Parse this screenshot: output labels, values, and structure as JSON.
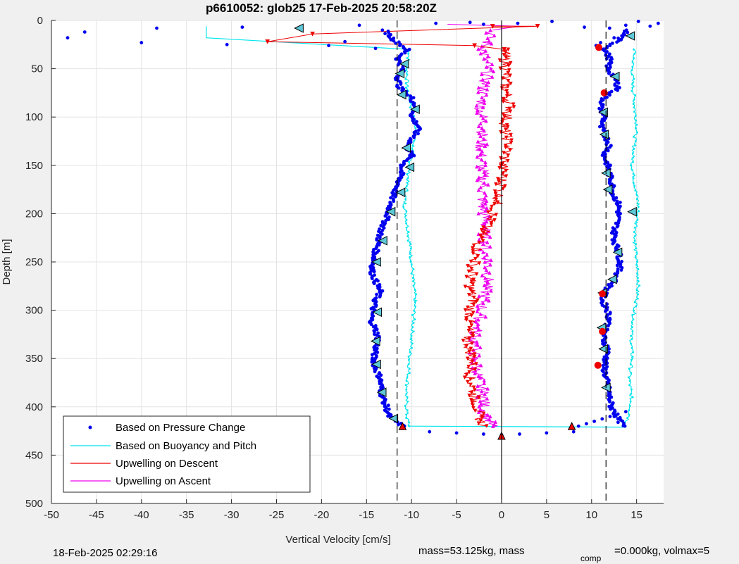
{
  "chart_data": {
    "type": "scatter",
    "title": "p6610052: glob25 17-Feb-2025 20:58:20Z",
    "xlabel": "Vertical Velocity [cm/s]",
    "ylabel": "Depth [m]",
    "xlim": [
      -50,
      18
    ],
    "ylim": [
      0,
      500
    ],
    "y_reversed": true,
    "grid": true,
    "legend_position": "bottom-left",
    "x_ticks": [
      -50,
      -45,
      -40,
      -35,
      -30,
      -25,
      -20,
      -15,
      -10,
      -5,
      0,
      5,
      10,
      15
    ],
    "y_ticks": [
      0,
      50,
      100,
      150,
      200,
      250,
      300,
      350,
      400,
      450,
      500
    ],
    "reference_lines": [
      {
        "x": -11.6,
        "style": "dashed"
      },
      {
        "x": 11.6,
        "style": "dashed"
      },
      {
        "x": 0,
        "style": "solid"
      }
    ],
    "series": [
      {
        "name": "Based on Pressure Change",
        "color": "#0000ee",
        "marker": "dot",
        "depth": [
          10,
          20,
          30,
          40,
          50,
          60,
          70,
          80,
          90,
          100,
          110,
          120,
          130,
          140,
          150,
          160,
          170,
          180,
          190,
          200,
          210,
          220,
          230,
          240,
          250,
          260,
          270,
          280,
          290,
          300,
          310,
          320,
          330,
          340,
          350,
          360,
          370,
          380,
          390,
          400,
          410,
          420
        ],
        "down": [
          -13,
          -12,
          -10.5,
          -11.5,
          -11,
          -11.5,
          -11.3,
          -10,
          -9.5,
          -10,
          -9.2,
          -9.7,
          -10.5,
          -10,
          -11,
          -11.2,
          -11.5,
          -12,
          -12.3,
          -12.6,
          -13,
          -13.5,
          -13.7,
          -14,
          -14.2,
          -14.4,
          -14,
          -13.5,
          -14,
          -14.3,
          -14.5,
          -14,
          -13.7,
          -14,
          -14.2,
          -14,
          -13.5,
          -13.4,
          -13.2,
          -12.8,
          -12.5,
          -11
        ],
        "up": [
          14,
          13,
          11.5,
          12,
          11.8,
          12.6,
          13,
          11.4,
          11,
          11.5,
          11,
          11.6,
          12,
          11.4,
          11.8,
          12,
          12.3,
          12.4,
          13,
          13,
          12.8,
          12.5,
          12.6,
          13,
          13.2,
          13,
          12.5,
          11.5,
          11.2,
          11.8,
          12,
          11.5,
          11.3,
          11.8,
          11.6,
          11.4,
          11.6,
          11.8,
          12,
          12.2,
          12.8,
          13.5
        ],
        "bottom_turn": [
          -8,
          -5,
          -2,
          0,
          2,
          5,
          8
        ]
      },
      {
        "name": "Based on Buoyancy and Pitch",
        "color": "#00e5ee",
        "marker": "line",
        "surface_excursion_x": -32.8,
        "depth": [
          30,
          50,
          70,
          90,
          110,
          130,
          150,
          170,
          190,
          210,
          230,
          250,
          270,
          290,
          310,
          330,
          350,
          370,
          390,
          410,
          420
        ],
        "down": [
          -10.2,
          -10.5,
          -10.5,
          -10,
          -9.5,
          -9.8,
          -10.2,
          -10.5,
          -10.8,
          -10.5,
          -10.2,
          -10,
          -9.8,
          -9.6,
          -9.8,
          -10,
          -10.2,
          -10.4,
          -10.6,
          -10.5,
          -10.3
        ],
        "up": [
          14.8,
          14.5,
          14.6,
          14.8,
          15,
          14.7,
          14.5,
          14.8,
          15.2,
          15,
          14.8,
          15,
          15.2,
          15,
          14.6,
          14.4,
          14.5,
          14.2,
          14.4,
          14.2,
          13.6
        ]
      },
      {
        "name": "Upwelling on Descent",
        "color": "#ee0000",
        "marker": "triangle-down",
        "surface_excursion_x": [
          4,
          -26
        ],
        "depth": [
          30,
          50,
          70,
          90,
          110,
          130,
          150,
          170,
          190,
          210,
          230,
          250,
          270,
          290,
          310,
          330,
          350,
          370,
          390,
          410,
          420
        ],
        "values": [
          0.3,
          0.5,
          0.4,
          1,
          0.3,
          0.8,
          0.2,
          0,
          -0.5,
          -1.5,
          -2.5,
          -3,
          -3.5,
          -3.2,
          -3.6,
          -3.8,
          -3.3,
          -3.5,
          -3,
          -2.5,
          -2
        ]
      },
      {
        "name": "Upwelling on Ascent",
        "color": "#ee00ee",
        "marker": "triangle-up",
        "surface_excursion_x": [
          -6,
          2
        ],
        "depth": [
          10,
          30,
          50,
          70,
          90,
          110,
          130,
          150,
          170,
          190,
          210,
          230,
          250,
          270,
          290,
          310,
          330,
          350,
          370,
          390,
          410,
          420
        ],
        "values": [
          -1,
          -2,
          -1.5,
          -2,
          -2.3,
          -2,
          -2.3,
          -2.2,
          -2,
          -2.2,
          -1.8,
          -2,
          -1.5,
          -1.5,
          -2,
          -2.5,
          -3,
          -3,
          -2.5,
          -2,
          -1.8,
          -1
        ]
      }
    ]
  },
  "footer": {
    "timestamp": "18-Feb-2025 02:29:16",
    "mass_text": "mass=53.125kg, mass",
    "comp_sub": "comp",
    "comp_text": "=0.000kg, volmax=5"
  }
}
